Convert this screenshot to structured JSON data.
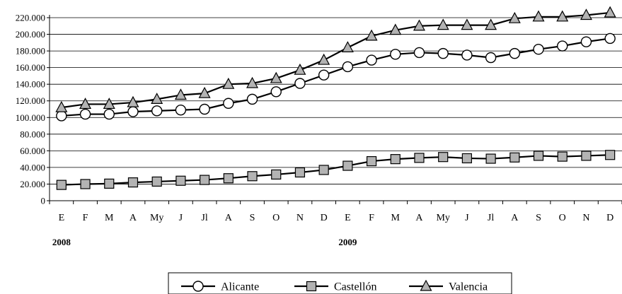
{
  "chart_data": {
    "type": "line",
    "categories": [
      "E",
      "F",
      "M",
      "A",
      "My",
      "J",
      "Jl",
      "A",
      "S",
      "O",
      "N",
      "D",
      "E",
      "F",
      "M",
      "A",
      "My",
      "J",
      "Jl",
      "A",
      "S",
      "O",
      "N",
      "D"
    ],
    "year_labels": [
      {
        "text": "2008",
        "category_index": 0
      },
      {
        "text": "2009",
        "category_index": 12
      }
    ],
    "ylim": [
      0,
      220000
    ],
    "yticks": [
      0,
      20000,
      40000,
      60000,
      80000,
      100000,
      120000,
      140000,
      160000,
      180000,
      200000,
      220000
    ],
    "ytick_labels": [
      "0",
      "20.000",
      "40.000",
      "60.000",
      "80.000",
      "100.000",
      "120.000",
      "140.000",
      "160.000",
      "180.000",
      "200.000",
      "220.000"
    ],
    "grid": "horizontal",
    "legend_position": "bottom-center",
    "series": [
      {
        "name": "Alicante",
        "marker": "circle",
        "fill": "#ffffff",
        "values": [
          102000,
          104000,
          104000,
          107000,
          108000,
          109000,
          110000,
          117000,
          122000,
          131000,
          141000,
          151000,
          161000,
          169000,
          176000,
          178000,
          177000,
          175000,
          172000,
          177000,
          182000,
          186000,
          191000,
          195000
        ]
      },
      {
        "name": "Castellón",
        "marker": "square",
        "fill": "#b3b3b3",
        "values": [
          19000,
          20000,
          20500,
          22000,
          23000,
          24000,
          25000,
          27000,
          29500,
          31500,
          34000,
          37000,
          42000,
          47500,
          50000,
          51500,
          52500,
          51000,
          50500,
          52000,
          54000,
          53000,
          54000,
          55000
        ]
      },
      {
        "name": "Valencia",
        "marker": "triangle",
        "fill": "#b3b3b3",
        "values": [
          112000,
          116000,
          116000,
          118000,
          122000,
          127000,
          129000,
          140000,
          141000,
          147000,
          157000,
          169000,
          184000,
          198000,
          205000,
          210000,
          211000,
          211000,
          211000,
          219000,
          221000,
          221000,
          223000,
          226000
        ]
      }
    ]
  }
}
